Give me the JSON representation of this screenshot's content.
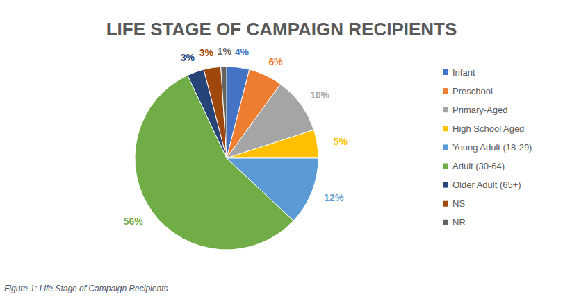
{
  "chart_data": {
    "type": "pie",
    "title": "LIFE STAGE OF CAMPAIGN RECIPIENTS",
    "categories": [
      "Infant",
      "Preschool",
      "Primary-Aged",
      "High School Aged",
      "Young Adult (18-29)",
      "Adult (30-64)",
      "Older Adult (65+)",
      "NS",
      "NR"
    ],
    "values": [
      4,
      6,
      10,
      5,
      12,
      56,
      3,
      3,
      1
    ],
    "value_labels": [
      "4%",
      "6%",
      "10%",
      "5%",
      "12%",
      "56%",
      "3%",
      "3%",
      "1%"
    ],
    "colors": [
      "#4472c4",
      "#ed7d31",
      "#a5a5a5",
      "#ffc000",
      "#5b9bd5",
      "#70ad47",
      "#264478",
      "#9e480e",
      "#636363"
    ],
    "data_labels": true,
    "legend": "right"
  },
  "caption": "Figure 1: Life Stage of Campaign Recipients"
}
